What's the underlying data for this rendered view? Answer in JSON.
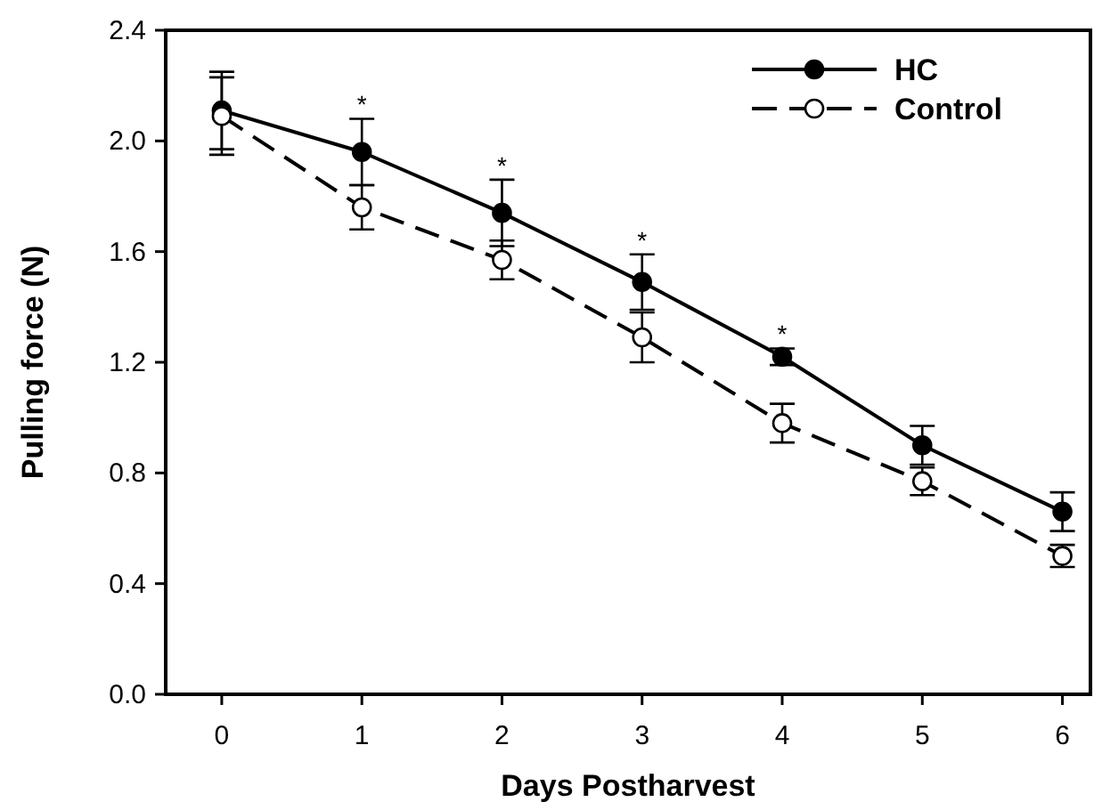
{
  "chart_data": {
    "type": "line",
    "xlabel": "Days Postharvest",
    "ylabel": "Pulling force (N)",
    "x": [
      0,
      1,
      2,
      3,
      4,
      5,
      6
    ],
    "xlim": [
      -0.4,
      6.2
    ],
    "xticks": [
      0,
      1,
      2,
      3,
      4,
      5,
      6
    ],
    "ylim": [
      0,
      2.4
    ],
    "yticks": [
      {
        "value": 0,
        "label": "0.0"
      },
      {
        "value": 0.4,
        "label": "0.4"
      },
      {
        "value": 0.8,
        "label": "0.8"
      },
      {
        "value": 1.2,
        "label": "1.2"
      },
      {
        "value": 1.6,
        "label": "1.6"
      },
      {
        "value": 2,
        "label": "2.0"
      },
      {
        "value": 2.4,
        "label": "2.4"
      }
    ],
    "series": [
      {
        "name": "HC",
        "color": "#000000",
        "values": [
          2.11,
          1.96,
          1.74,
          1.49,
          1.22,
          0.9,
          0.66
        ],
        "errors": [
          0.14,
          0.12,
          0.12,
          0.1,
          0.03,
          0.07,
          0.07
        ],
        "marker": "circle",
        "line_style": "solid"
      },
      {
        "name": "Control",
        "color": "#000000",
        "values": [
          2.09,
          1.76,
          1.57,
          1.29,
          0.98,
          0.77,
          0.5
        ],
        "errors": [
          0.14,
          0.08,
          0.07,
          0.09,
          0.07,
          0.05,
          0.04
        ],
        "marker": "circle",
        "line_style": "dashed"
      }
    ],
    "annotations": [
      {
        "text": "*",
        "x": 1,
        "y": 1.96
      },
      {
        "text": "*",
        "x": 2,
        "y": 1.74
      },
      {
        "text": "*",
        "x": 3,
        "y": 1.49
      },
      {
        "text": "*",
        "x": 4,
        "y": 1.22
      }
    ],
    "legend": "top right",
    "grid": false
  }
}
